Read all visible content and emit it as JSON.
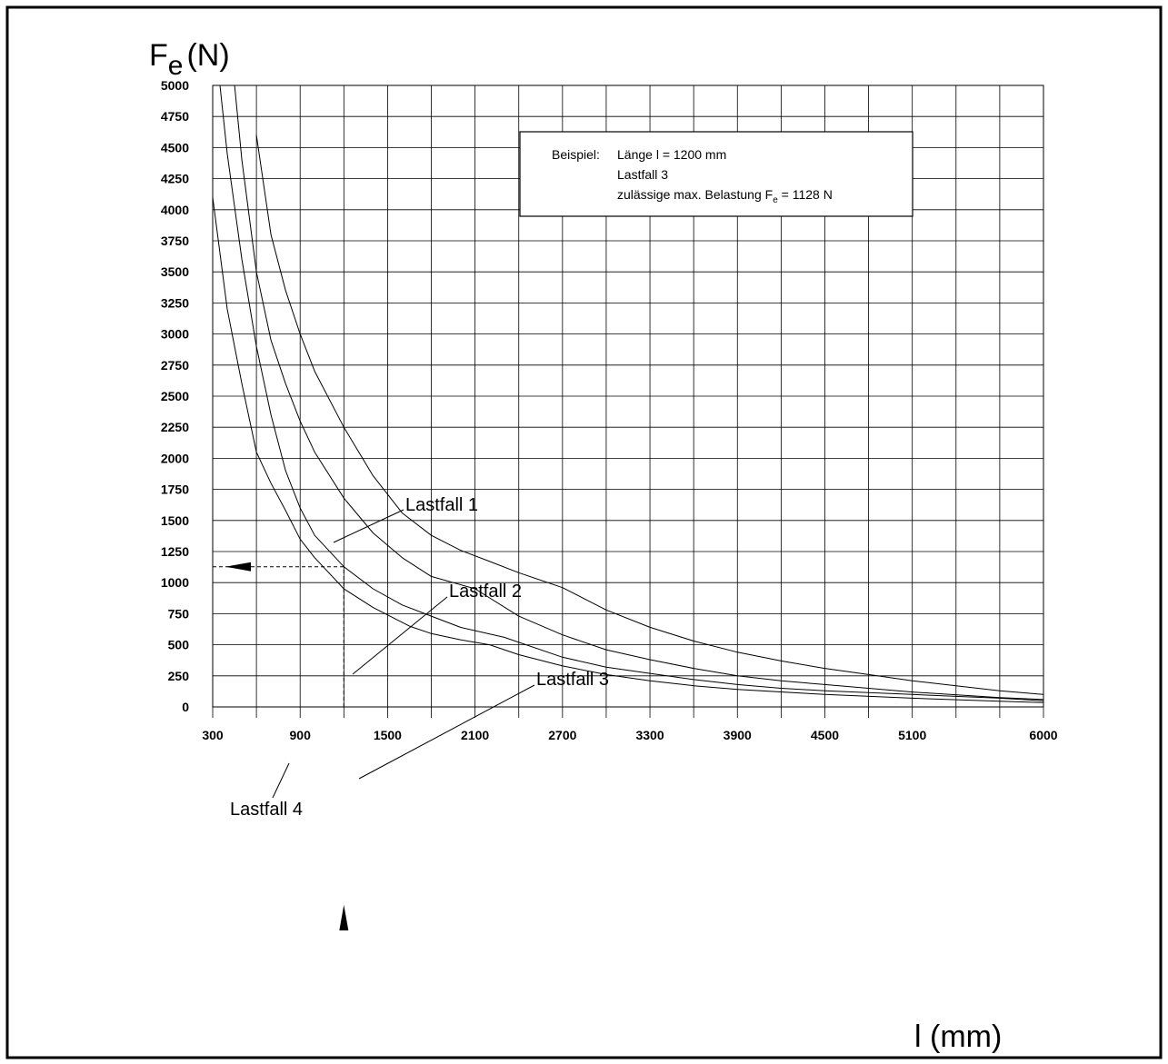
{
  "chart_data": {
    "type": "line",
    "y_axis_title": {
      "main": "F",
      "sub": "e",
      "unit": "(N)"
    },
    "x_axis_title": "l (mm)",
    "ylim": [
      0,
      5000
    ],
    "xlim": [
      300,
      6000
    ],
    "y_ticks": [
      0,
      250,
      500,
      750,
      1000,
      1250,
      1500,
      1750,
      2000,
      2250,
      2500,
      2750,
      3000,
      3250,
      3500,
      3750,
      4000,
      4250,
      4500,
      4750,
      5000
    ],
    "x_ticks": [
      300,
      900,
      1500,
      2100,
      2700,
      3300,
      3900,
      4500,
      5100,
      6000
    ],
    "x_tick_labels": [
      "300",
      "900",
      "1500",
      "2100",
      "2700",
      "3300",
      "3900",
      "4500",
      "5100",
      "6000"
    ],
    "x_tick_positions": [
      300,
      900,
      1500,
      2100,
      2700,
      3300,
      3900,
      4500,
      5100,
      6000
    ],
    "grid": true,
    "series": [
      {
        "name": "Lastfall 1",
        "x": [
          600,
          700,
          800,
          900,
          1000,
          1200,
          1400,
          1600,
          1800,
          2000,
          2200,
          2400,
          2700,
          3000,
          3300,
          3600,
          3900,
          4200,
          4500,
          4800,
          5100,
          5400,
          5700,
          6000
        ],
        "y": [
          4600,
          3800,
          3350,
          3000,
          2700,
          2250,
          1860,
          1560,
          1380,
          1260,
          1170,
          1080,
          960,
          780,
          640,
          530,
          440,
          370,
          310,
          260,
          210,
          170,
          130,
          100
        ]
      },
      {
        "name": "Lastfall 2",
        "x": [
          450,
          500,
          600,
          700,
          800,
          900,
          1000,
          1200,
          1400,
          1600,
          1800,
          2100,
          2400,
          2700,
          3000,
          3300,
          3600,
          3900,
          4200,
          4500,
          5100,
          5700,
          6000
        ],
        "y": [
          5000,
          4400,
          3500,
          2950,
          2600,
          2300,
          2050,
          1680,
          1400,
          1200,
          1050,
          950,
          730,
          580,
          460,
          380,
          310,
          250,
          210,
          180,
          120,
          75,
          60
        ]
      },
      {
        "name": "Lastfall 3",
        "x": [
          350,
          400,
          500,
          600,
          700,
          800,
          900,
          1000,
          1200,
          1400,
          1600,
          1800,
          2000,
          2300,
          2700,
          3000,
          3300,
          3600,
          3900,
          4200,
          4500,
          5100,
          5700,
          6000
        ],
        "y": [
          5000,
          4450,
          3600,
          2900,
          2350,
          1900,
          1600,
          1380,
          1128,
          950,
          820,
          730,
          640,
          560,
          400,
          320,
          270,
          220,
          180,
          150,
          130,
          100,
          70,
          50
        ]
      },
      {
        "name": "Lastfall 4",
        "x": [
          300,
          400,
          500,
          600,
          700,
          800,
          900,
          1000,
          1200,
          1400,
          1650,
          1800,
          2000,
          2200,
          2400,
          2700,
          3000,
          3300,
          3600,
          3900,
          4500,
          5100,
          5700,
          6000
        ],
        "y": [
          4100,
          3200,
          2600,
          2050,
          1800,
          1580,
          1350,
          1200,
          950,
          800,
          650,
          590,
          540,
          500,
          420,
          330,
          260,
          210,
          170,
          140,
          100,
          70,
          45,
          35
        ]
      }
    ],
    "curve_labels": [
      "Lastfall 1",
      "Lastfall 2",
      "Lastfall 3",
      "Lastfall 4"
    ],
    "example_point": {
      "x": 1200,
      "y": 1128
    },
    "annotation": {
      "prefix": "Beispiel:",
      "line1": "Länge l = 1200 mm",
      "line2": "Lastfall 3",
      "line3_before": "zulässige max. Belastung F",
      "line3_sub": "e",
      "line3_after": " = 1128 N"
    }
  }
}
